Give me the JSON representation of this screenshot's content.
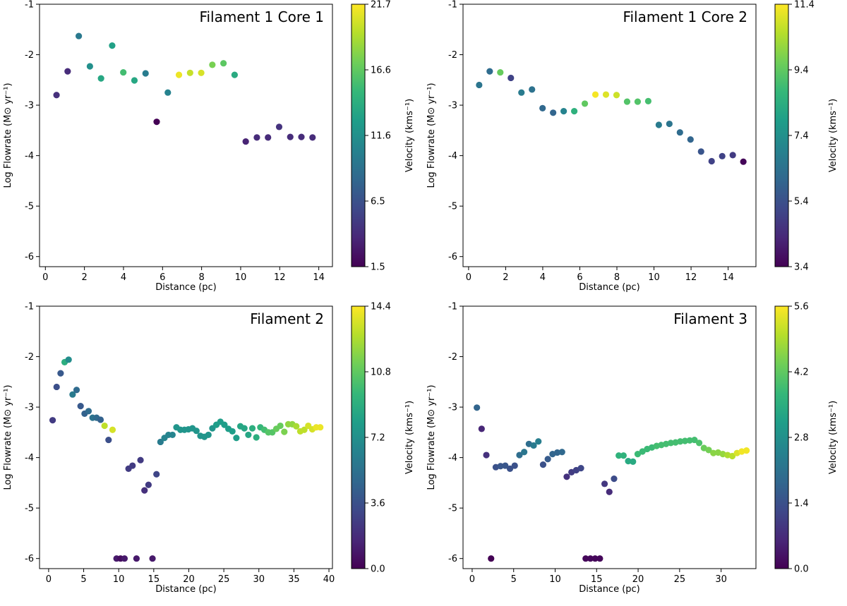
{
  "figure": {
    "colormap": "viridis"
  },
  "chart_data": [
    {
      "type": "scatter",
      "title": "Filament 1 Core 1",
      "xlabel": "Distance (pc)",
      "ylabel": "Log Flowrate (M⊙ yr⁻¹)",
      "colorbar_label": "Velocity (kms⁻¹)",
      "xlim": [
        -0.3,
        14.7
      ],
      "ylim": [
        -6.2,
        -1
      ],
      "xticks": [
        0,
        2,
        4,
        6,
        8,
        10,
        12,
        14
      ],
      "yticks": [
        -1,
        -2,
        -3,
        -4,
        -5,
        -6
      ],
      "clim": [
        1.5,
        21.7
      ],
      "cticks": [
        "21.7",
        "16.6",
        "11.6",
        "6.5",
        "1.5"
      ],
      "x": [
        0.57,
        1.14,
        1.71,
        2.28,
        2.85,
        3.42,
        3.99,
        4.56,
        5.13,
        5.7,
        6.84,
        6.27,
        7.41,
        7.98,
        8.55,
        9.12,
        9.69,
        10.26,
        10.83,
        11.4,
        11.97,
        12.54,
        13.11,
        13.68
      ],
      "y": [
        -2.8,
        -2.33,
        -1.63,
        -2.23,
        -2.47,
        -1.82,
        -2.35,
        -2.51,
        -2.37,
        -3.33,
        -2.4,
        -2.75,
        -2.36,
        -2.36,
        -2.2,
        -2.17,
        -2.4,
        -3.72,
        -3.64,
        -3.64,
        -3.43,
        -3.63,
        -3.63,
        -3.64
      ],
      "v": [
        4.3,
        4.0,
        9.7,
        11.6,
        13.5,
        13.0,
        15.5,
        13.5,
        10.0,
        1.5,
        21.2,
        10.5,
        20.0,
        20.5,
        17.5,
        16.5,
        13.8,
        3.5,
        4.0,
        4.0,
        4.5,
        4.0,
        4.0,
        4.0
      ]
    },
    {
      "type": "scatter",
      "title": "Filament 1 Core 2",
      "xlabel": "Distance (pc)",
      "ylabel": "Log Flowrate (M⊙ yr⁻¹)",
      "colorbar_label": "Velocity (kms⁻¹)",
      "xlim": [
        -0.3,
        15.5
      ],
      "ylim": [
        -6.2,
        -1
      ],
      "xticks": [
        0,
        2,
        4,
        6,
        8,
        10,
        12,
        14
      ],
      "yticks": [
        -1,
        -2,
        -3,
        -4,
        -5,
        -6
      ],
      "clim": [
        3.4,
        11.4
      ],
      "cticks": [
        "11.4",
        "9.4",
        "7.4",
        "5.4",
        "3.4"
      ],
      "x": [
        0.57,
        1.14,
        1.71,
        2.28,
        2.85,
        3.42,
        3.99,
        4.56,
        5.13,
        5.7,
        6.27,
        6.84,
        7.41,
        7.98,
        8.55,
        9.12,
        9.69,
        10.26,
        10.83,
        11.4,
        11.97,
        12.54,
        13.11,
        13.68,
        14.25,
        14.82
      ],
      "y": [
        -2.6,
        -2.33,
        -2.35,
        -2.46,
        -2.75,
        -2.69,
        -3.06,
        -3.15,
        -3.12,
        -3.12,
        -2.97,
        -2.79,
        -2.79,
        -2.8,
        -2.93,
        -2.93,
        -2.92,
        -3.39,
        -3.37,
        -3.54,
        -3.68,
        -3.92,
        -4.11,
        -4.01,
        -3.99,
        -4.12
      ],
      "v": [
        6.5,
        6.2,
        9.5,
        5.0,
        6.7,
        6.4,
        6.1,
        6.0,
        7.0,
        8.5,
        9.4,
        11.3,
        11.0,
        10.8,
        9.2,
        9.2,
        9.0,
        6.7,
        6.5,
        6.2,
        6.0,
        5.5,
        5.0,
        5.0,
        4.8,
        3.5
      ]
    },
    {
      "type": "scatter",
      "title": "Filament 2",
      "xlabel": "Distance (pc)",
      "ylabel": "Log Flowrate (M⊙ yr⁻¹)",
      "colorbar_label": "Velocity (kms⁻¹)",
      "xlim": [
        -1.3,
        40.5
      ],
      "ylim": [
        -6.2,
        -1
      ],
      "xticks": [
        0,
        5,
        10,
        15,
        20,
        25,
        30,
        35,
        40
      ],
      "yticks": [
        -1,
        -2,
        -3,
        -4,
        -5,
        -6
      ],
      "clim": [
        0.0,
        14.4
      ],
      "cticks": [
        "14.4",
        "10.8",
        "7.2",
        "3.6",
        "0.0"
      ],
      "x": [
        0.57,
        1.14,
        1.71,
        2.28,
        2.85,
        3.42,
        3.99,
        4.56,
        5.13,
        5.7,
        6.27,
        6.84,
        7.41,
        7.98,
        8.55,
        9.12,
        9.69,
        10.26,
        10.83,
        11.4,
        11.97,
        12.54,
        13.11,
        13.68,
        14.25,
        14.82,
        15.39,
        15.96,
        16.53,
        17.1,
        17.67,
        18.24,
        18.81,
        19.38,
        19.95,
        20.52,
        21.09,
        21.66,
        22.23,
        22.8,
        23.37,
        23.94,
        24.51,
        25.08,
        25.65,
        26.22,
        26.79,
        27.36,
        27.93,
        28.5,
        29.07,
        29.64,
        30.21,
        30.78,
        31.35,
        31.92,
        32.49,
        33.06,
        33.63,
        34.2,
        34.77,
        35.34,
        35.91,
        36.48,
        37.05,
        37.62,
        38.19,
        38.76
      ],
      "y": [
        -3.26,
        -2.6,
        -2.33,
        -2.11,
        -2.06,
        -2.75,
        -2.66,
        -2.98,
        -3.13,
        -3.08,
        -3.21,
        -3.21,
        -3.25,
        -3.37,
        -3.65,
        -3.45,
        -6.0,
        -6.0,
        -6.0,
        -4.22,
        -4.16,
        -6.0,
        -4.05,
        -4.65,
        -4.54,
        -6.0,
        -4.33,
        -3.69,
        -3.61,
        -3.55,
        -3.55,
        -3.4,
        -3.45,
        -3.45,
        -3.44,
        -3.42,
        -3.47,
        -3.57,
        -3.59,
        -3.55,
        -3.42,
        -3.35,
        -3.29,
        -3.35,
        -3.43,
        -3.48,
        -3.61,
        -3.38,
        -3.42,
        -3.55,
        -3.42,
        -3.6,
        -3.4,
        -3.45,
        -3.5,
        -3.5,
        -3.43,
        -3.37,
        -3.49,
        -3.34,
        -3.34,
        -3.38,
        -3.48,
        -3.45,
        -3.37,
        -3.44,
        -3.4,
        -3.4
      ],
      "v": [
        2.5,
        3.5,
        4.0,
        9.0,
        7.0,
        6.0,
        5.0,
        4.0,
        4.5,
        5.0,
        5.5,
        5.0,
        4.5,
        13.0,
        3.5,
        13.5,
        1.0,
        0.5,
        1.0,
        2.5,
        2.5,
        1.0,
        2.5,
        2.0,
        2.5,
        1.0,
        3.0,
        6.0,
        6.5,
        6.5,
        6.5,
        7.5,
        7.5,
        7.5,
        7.5,
        7.5,
        7.5,
        7.5,
        7.5,
        7.5,
        7.5,
        8.0,
        8.0,
        8.0,
        8.0,
        8.0,
        8.0,
        8.5,
        8.5,
        8.5,
        9.0,
        9.0,
        9.5,
        10.0,
        10.5,
        10.5,
        11.0,
        11.0,
        11.5,
        12.0,
        12.0,
        12.5,
        13.0,
        13.0,
        13.5,
        13.5,
        14.0,
        14.0
      ]
    },
    {
      "type": "scatter",
      "title": "Filament 3",
      "xlabel": "Distance (pc)",
      "ylabel": "Log Flowrate (M⊙ yr⁻¹)",
      "colorbar_label": "Velocity (kms⁻¹)",
      "xlim": [
        -1.1,
        34.2
      ],
      "ylim": [
        -6.2,
        -1
      ],
      "xticks": [
        0,
        5,
        10,
        15,
        20,
        25,
        30
      ],
      "yticks": [
        -1,
        -2,
        -3,
        -4,
        -5,
        -6
      ],
      "clim": [
        0.0,
        5.6
      ],
      "cticks": [
        "5.6",
        "4.2",
        "2.8",
        "1.4",
        "0.0"
      ],
      "x": [
        0.57,
        1.14,
        1.71,
        2.28,
        2.85,
        3.42,
        3.99,
        4.56,
        5.13,
        5.7,
        6.27,
        6.84,
        7.41,
        7.98,
        8.55,
        9.12,
        9.69,
        10.26,
        10.83,
        11.4,
        11.97,
        12.54,
        13.11,
        13.68,
        14.25,
        14.82,
        15.39,
        15.96,
        16.53,
        17.1,
        17.67,
        18.24,
        18.81,
        19.38,
        19.95,
        20.52,
        21.09,
        21.66,
        22.23,
        22.8,
        23.37,
        23.94,
        24.51,
        25.08,
        25.65,
        26.22,
        26.79,
        27.36,
        27.93,
        28.5,
        29.07,
        29.64,
        30.21,
        30.78,
        31.35,
        31.92,
        32.49,
        33.06
      ],
      "y": [
        -3.01,
        -3.43,
        -3.95,
        -6.0,
        -4.19,
        -4.17,
        -4.16,
        -4.22,
        -4.16,
        -3.95,
        -3.89,
        -3.73,
        -3.76,
        -3.68,
        -4.14,
        -4.03,
        -3.93,
        -3.9,
        -3.89,
        -4.38,
        -4.29,
        -4.25,
        -4.21,
        -6.0,
        -6.0,
        -6.0,
        -6.0,
        -4.52,
        -4.68,
        -4.42,
        -3.96,
        -3.96,
        -4.07,
        -4.08,
        -3.93,
        -3.88,
        -3.83,
        -3.8,
        -3.77,
        -3.75,
        -3.73,
        -3.71,
        -3.7,
        -3.68,
        -3.67,
        -3.66,
        -3.65,
        -3.71,
        -3.81,
        -3.85,
        -3.91,
        -3.9,
        -3.93,
        -3.95,
        -3.97,
        -3.91,
        -3.88,
        -3.86
      ],
      "v": [
        1.8,
        0.6,
        0.8,
        0.0,
        1.4,
        1.5,
        1.5,
        1.4,
        1.4,
        2.0,
        2.2,
        2.0,
        2.3,
        2.4,
        1.4,
        1.6,
        1.8,
        1.8,
        1.9,
        0.8,
        1.0,
        1.1,
        1.2,
        0.1,
        0.1,
        0.1,
        0.1,
        0.9,
        0.7,
        1.3,
        3.6,
        3.6,
        3.4,
        3.4,
        3.8,
        3.8,
        3.8,
        3.8,
        3.9,
        3.9,
        3.9,
        3.9,
        3.9,
        3.9,
        3.9,
        3.9,
        3.9,
        4.0,
        4.3,
        4.4,
        4.6,
        4.6,
        4.7,
        4.9,
        5.0,
        5.3,
        5.5,
        5.5
      ]
    }
  ]
}
